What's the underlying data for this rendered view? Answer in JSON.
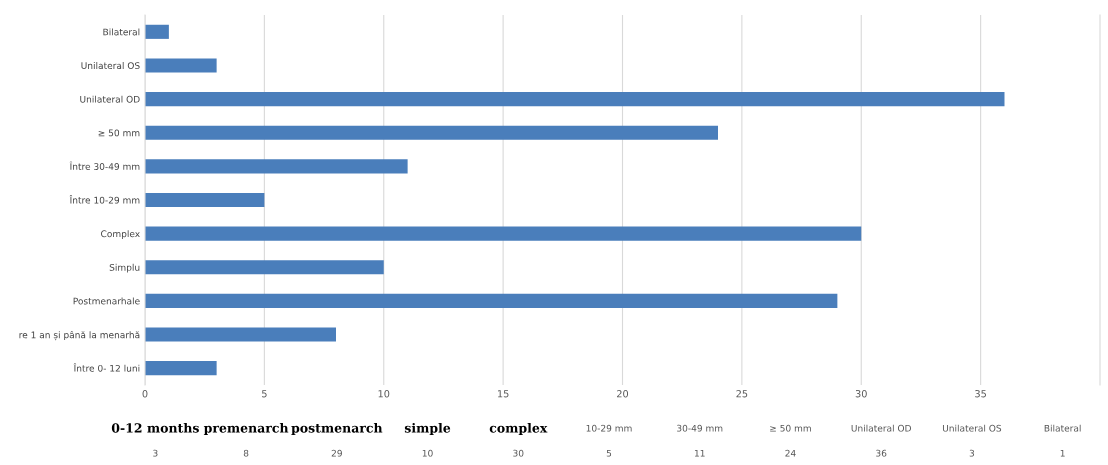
{
  "chart_data": {
    "type": "bar",
    "orientation": "horizontal",
    "categories": [
      "Bilateral",
      "Unilateral OS",
      "Unilateral OD",
      "≥ 50 mm",
      "Între 30-49 mm",
      "Între 10-29 mm",
      "Complex",
      "Simplu",
      "Postmenarhale",
      "re 1 an și până la menarhă",
      "Între 0- 12 luni"
    ],
    "values": [
      1,
      3,
      36,
      24,
      11,
      5,
      30,
      10,
      29,
      8,
      3
    ],
    "color": "#4a7ebb",
    "xlim": [
      0,
      40
    ],
    "xticks": [
      0,
      5,
      10,
      15,
      20,
      25,
      30,
      35
    ],
    "grid": "x",
    "annotations": [
      "0-12 months",
      "premenarch",
      "postmenarch",
      "simple",
      "complex",
      "10-29 mm",
      "30-49 mm",
      "≥ 50 mm",
      "Unilateral OD",
      "Unilateral OS",
      "Bilateral",
      "3",
      "8",
      "29",
      "10",
      "30",
      "5",
      "11",
      "24",
      "36",
      "3",
      "1"
    ]
  }
}
